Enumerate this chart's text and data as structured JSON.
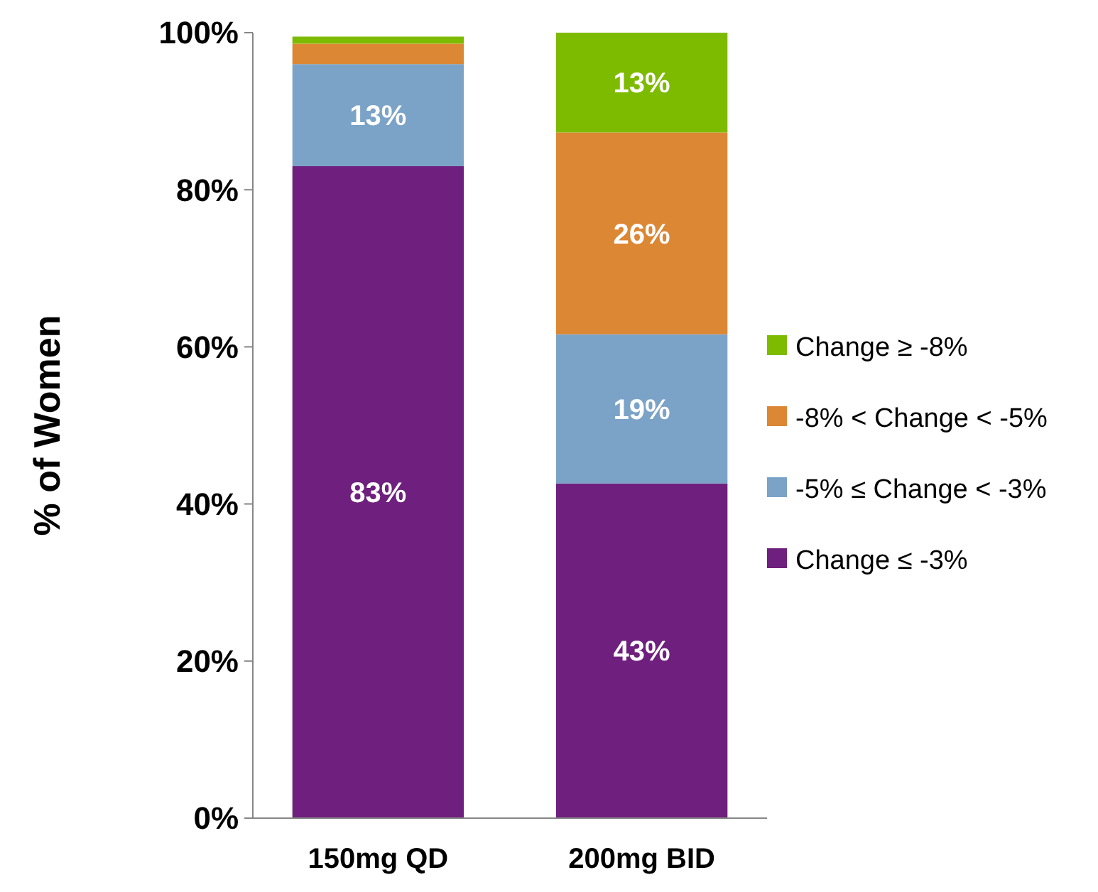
{
  "chart_data": {
    "type": "bar",
    "stacked": true,
    "ylabel": "% of Women",
    "categories": [
      "150mg QD",
      "200mg BID"
    ],
    "ylim": [
      0,
      100
    ],
    "yticks": [
      {
        "value": 0,
        "label": "0%"
      },
      {
        "value": 20,
        "label": "20%"
      },
      {
        "value": 40,
        "label": "40%"
      },
      {
        "value": 60,
        "label": "60%"
      },
      {
        "value": 80,
        "label": "80%"
      },
      {
        "value": 100,
        "label": "100%"
      }
    ],
    "series": [
      {
        "name": "Change ≤ -3%",
        "color": "#6f1f7d",
        "values": [
          83,
          42.6
        ],
        "value_labels": [
          "83%",
          "43%"
        ]
      },
      {
        "name": "-5% ≤ Change < -3%",
        "color": "#7ba3c7",
        "values": [
          13,
          19
        ],
        "value_labels": [
          "13%",
          "19%"
        ]
      },
      {
        "name": "-8% < Change < -5%",
        "color": "#dc8733",
        "values": [
          2.6,
          25.7
        ],
        "value_labels": [
          null,
          "26%"
        ]
      },
      {
        "name": "Change ≥ -8%",
        "color": "#7dbb00",
        "values": [
          0.9,
          12.7
        ],
        "value_labels": [
          null,
          "13%"
        ]
      }
    ],
    "legend": "right",
    "grid": false
  }
}
